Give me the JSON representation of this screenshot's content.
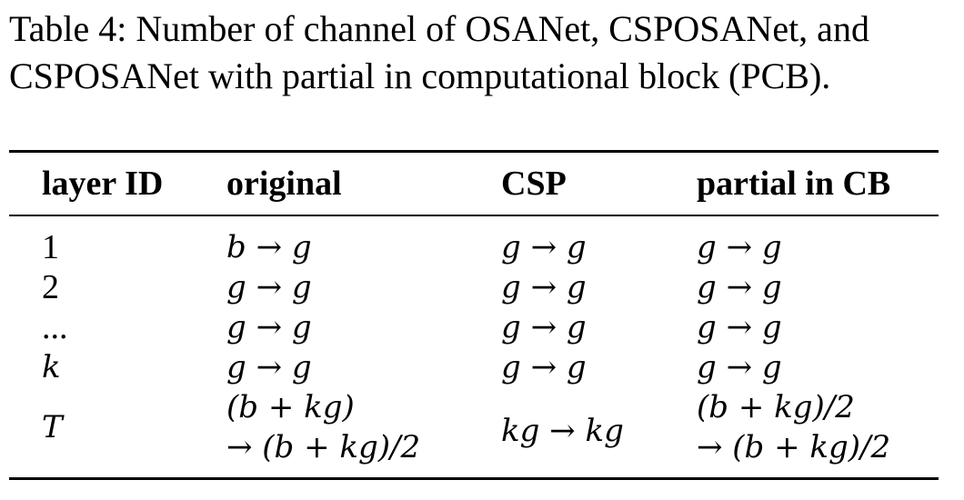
{
  "caption": {
    "line1": "Table 4: Number of channel of OSANet, CSPOSANet, and",
    "line2": "CSPOSANet with partial in computational block (PCB)."
  },
  "table": {
    "headers": [
      "layer ID",
      "original",
      "CSP",
      "partial in CB"
    ],
    "rows": [
      {
        "layer": "1",
        "original": "b → g",
        "csp": "g → g",
        "pcb": "g → g"
      },
      {
        "layer": "2",
        "original": "g → g",
        "csp": "g → g",
        "pcb": "g → g"
      },
      {
        "layer": "...",
        "original": "g → g",
        "csp": "g → g",
        "pcb": "g → g"
      },
      {
        "layer": "k",
        "original": "g → g",
        "csp": "g → g",
        "pcb": "g → g"
      },
      {
        "layer": "T",
        "original_line1": "(b + kg)",
        "original_line2": "→ (b + kg)/2",
        "csp": "kg → kg",
        "pcb_line1": "(b + kg)/2",
        "pcb_line2": "→ (b + kg)/2"
      }
    ]
  }
}
